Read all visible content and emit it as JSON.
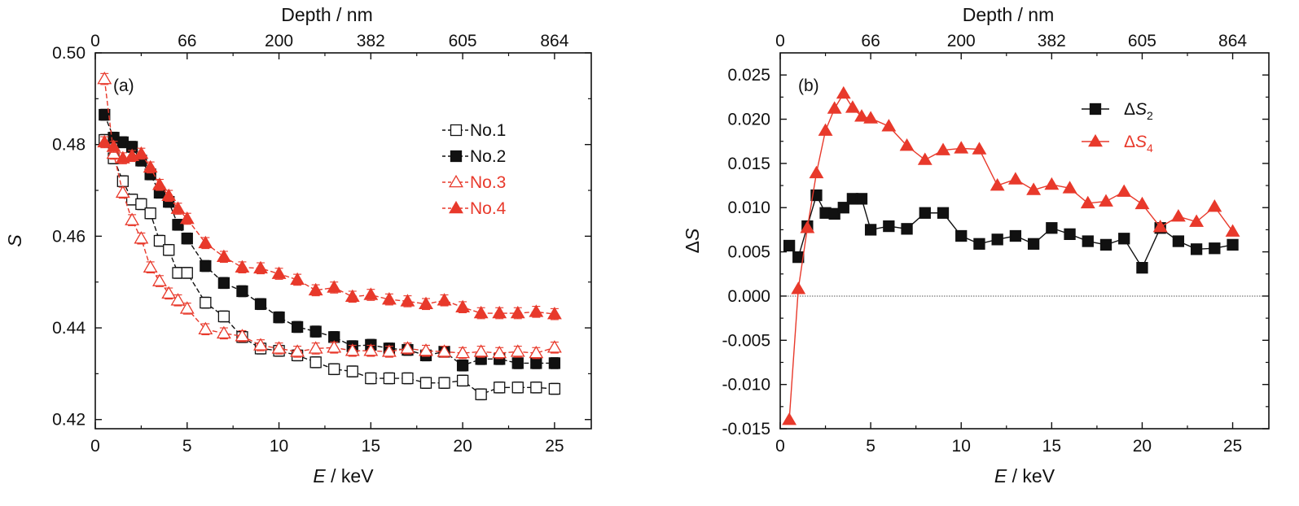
{
  "figure": {
    "colors": {
      "black": "#111111",
      "red": "#e8392b"
    }
  },
  "chart_data": [
    {
      "type": "line",
      "panel_label": "(a)",
      "xlabel_symbol": "E",
      "xlabel_unit": " / keV",
      "ylabel_symbol": "S",
      "top_axis_title": "Depth / nm",
      "top_ticks": [
        {
          "label": "0",
          "x": 0
        },
        {
          "label": "66",
          "x": 5
        },
        {
          "label": "200",
          "x": 10
        },
        {
          "label": "382",
          "x": 15
        },
        {
          "label": "605",
          "x": 20
        },
        {
          "label": "864",
          "x": 25
        }
      ],
      "xlim": [
        0,
        27
      ],
      "ylim": [
        0.418,
        0.5
      ],
      "xticks": [
        0,
        5,
        10,
        15,
        20,
        25
      ],
      "xtick_labels": [
        "0",
        "5",
        "10",
        "15",
        "20",
        "25"
      ],
      "yticks": [
        0.42,
        0.44,
        0.46,
        0.48,
        0.5
      ],
      "ytick_labels": [
        "0.42",
        "0.44",
        "0.46",
        "0.48",
        "0.50"
      ],
      "legend_position": "upper-right",
      "series": [
        {
          "name": "No.1",
          "color": "#111111",
          "marker": "square-open",
          "x": [
            0.5,
            1,
            1.5,
            2,
            2.5,
            3,
            3.5,
            4,
            4.5,
            5,
            6,
            7,
            8,
            9,
            10,
            11,
            12,
            13,
            14,
            15,
            16,
            17,
            18,
            19,
            20,
            21,
            22,
            23,
            24,
            25
          ],
          "y": [
            0.481,
            0.477,
            0.472,
            0.468,
            0.467,
            0.465,
            0.459,
            0.457,
            0.452,
            0.452,
            0.4455,
            0.4425,
            0.438,
            0.4355,
            0.435,
            0.434,
            0.4325,
            0.431,
            0.4305,
            0.429,
            0.429,
            0.429,
            0.428,
            0.428,
            0.4285,
            0.4255,
            0.427,
            0.427,
            0.427,
            0.4267
          ],
          "err": 0.0012
        },
        {
          "name": "No.2",
          "color": "#111111",
          "marker": "square-filled",
          "x": [
            0.5,
            1,
            1.5,
            2,
            2.5,
            3,
            3.5,
            4,
            4.5,
            5,
            6,
            7,
            8,
            9,
            10,
            11,
            12,
            13,
            14,
            15,
            16,
            17,
            18,
            19,
            20,
            21,
            22,
            23,
            24,
            25
          ],
          "y": [
            0.4865,
            0.4815,
            0.4805,
            0.4795,
            0.4765,
            0.4735,
            0.4695,
            0.4675,
            0.4625,
            0.4595,
            0.4535,
            0.4498,
            0.448,
            0.4452,
            0.4423,
            0.4402,
            0.4392,
            0.438,
            0.436,
            0.4363,
            0.4355,
            0.4352,
            0.434,
            0.4348,
            0.4318,
            0.4332,
            0.4332,
            0.4323,
            0.4323,
            0.4323
          ],
          "err": 0.0012
        },
        {
          "name": "No.3",
          "color": "#e8392b",
          "marker": "triangle-open",
          "x": [
            0.5,
            1,
            1.5,
            2,
            2.5,
            3,
            3.5,
            4,
            4.5,
            5,
            6,
            7,
            8,
            9,
            10,
            11,
            12,
            13,
            14,
            15,
            16,
            17,
            18,
            19,
            20,
            21,
            22,
            23,
            24,
            25
          ],
          "y": [
            0.4943,
            0.478,
            0.4695,
            0.4635,
            0.4595,
            0.4532,
            0.4502,
            0.4475,
            0.446,
            0.4442,
            0.4397,
            0.4388,
            0.4382,
            0.4362,
            0.4355,
            0.4348,
            0.4355,
            0.4357,
            0.435,
            0.435,
            0.4348,
            0.4355,
            0.435,
            0.4348,
            0.4345,
            0.4348,
            0.4345,
            0.4348,
            0.4345,
            0.4357
          ],
          "err": 0.0012
        },
        {
          "name": "No.4",
          "color": "#e8392b",
          "marker": "triangle-filled",
          "x": [
            0.5,
            1,
            1.5,
            2,
            2.5,
            3,
            3.5,
            4,
            4.5,
            5,
            6,
            7,
            8,
            9,
            10,
            11,
            12,
            13,
            14,
            15,
            16,
            17,
            18,
            19,
            20,
            21,
            22,
            23,
            24,
            25
          ],
          "y": [
            0.4805,
            0.4795,
            0.477,
            0.4775,
            0.478,
            0.475,
            0.4712,
            0.4688,
            0.466,
            0.4638,
            0.4585,
            0.4555,
            0.4532,
            0.453,
            0.4518,
            0.4505,
            0.4482,
            0.4488,
            0.4468,
            0.4472,
            0.4462,
            0.4458,
            0.4452,
            0.446,
            0.4445,
            0.4432,
            0.4432,
            0.4432,
            0.4435,
            0.443
          ],
          "err": 0.0012
        }
      ]
    },
    {
      "type": "line",
      "panel_label": "(b)",
      "xlabel_symbol": "E",
      "xlabel_unit": " / keV",
      "ylabel_symbol": "S",
      "ylabel_prefix": "Δ",
      "top_axis_title": "Depth / nm",
      "top_ticks": [
        {
          "label": "0",
          "x": 0
        },
        {
          "label": "66",
          "x": 5
        },
        {
          "label": "200",
          "x": 10
        },
        {
          "label": "382",
          "x": 15
        },
        {
          "label": "605",
          "x": 20
        },
        {
          "label": "864",
          "x": 25
        }
      ],
      "xlim": [
        0,
        27
      ],
      "ylim": [
        -0.015,
        0.0275
      ],
      "xticks": [
        0,
        5,
        10,
        15,
        20,
        25
      ],
      "xtick_labels": [
        "0",
        "5",
        "10",
        "15",
        "20",
        "25"
      ],
      "yticks": [
        -0.015,
        -0.01,
        -0.005,
        0,
        0.005,
        0.01,
        0.015,
        0.02,
        0.025
      ],
      "ytick_labels": [
        "-0.015",
        "-0.010",
        "-0.005",
        "0.000",
        "0.005",
        "0.010",
        "0.015",
        "0.020",
        "0.025"
      ],
      "zero_line": true,
      "legend_position": "upper-right",
      "series": [
        {
          "name": "ΔS",
          "name_prefix": "Δ",
          "name_symbol": "S",
          "name_sub": "2",
          "color": "#111111",
          "marker": "square-filled",
          "x": [
            0.5,
            1,
            1.5,
            2,
            2.5,
            3,
            3.5,
            4,
            4.5,
            5,
            6,
            7,
            8,
            9,
            10,
            11,
            12,
            13,
            14,
            15,
            16,
            17,
            18,
            19,
            20,
            21,
            22,
            23,
            24,
            25
          ],
          "y": [
            0.0057,
            0.0044,
            0.0079,
            0.0114,
            0.0094,
            0.0093,
            0.01,
            0.011,
            0.011,
            0.0075,
            0.0079,
            0.0076,
            0.0094,
            0.0094,
            0.0068,
            0.0059,
            0.0064,
            0.0068,
            0.0059,
            0.0077,
            0.007,
            0.0062,
            0.0058,
            0.0065,
            0.0032,
            0.0077,
            0.0062,
            0.0053,
            0.0054,
            0.0058
          ]
        },
        {
          "name": "ΔS",
          "name_prefix": "Δ",
          "name_symbol": "S",
          "name_sub": "4",
          "color": "#e8392b",
          "marker": "triangle-filled",
          "x": [
            0.5,
            1,
            1.5,
            2,
            2.5,
            3,
            3.5,
            4,
            4.5,
            5,
            6,
            7,
            8,
            9,
            10,
            11,
            12,
            13,
            14,
            15,
            16,
            17,
            18,
            19,
            20,
            21,
            22,
            23,
            24,
            25
          ],
          "y": [
            -0.014,
            0.0008,
            0.0077,
            0.0139,
            0.0187,
            0.0212,
            0.0229,
            0.0213,
            0.0203,
            0.0201,
            0.0192,
            0.017,
            0.0154,
            0.0165,
            0.0167,
            0.0166,
            0.0125,
            0.0132,
            0.012,
            0.0126,
            0.0122,
            0.0105,
            0.0107,
            0.0118,
            0.0104,
            0.0078,
            0.009,
            0.0084,
            0.0101,
            0.0073
          ]
        }
      ]
    }
  ]
}
